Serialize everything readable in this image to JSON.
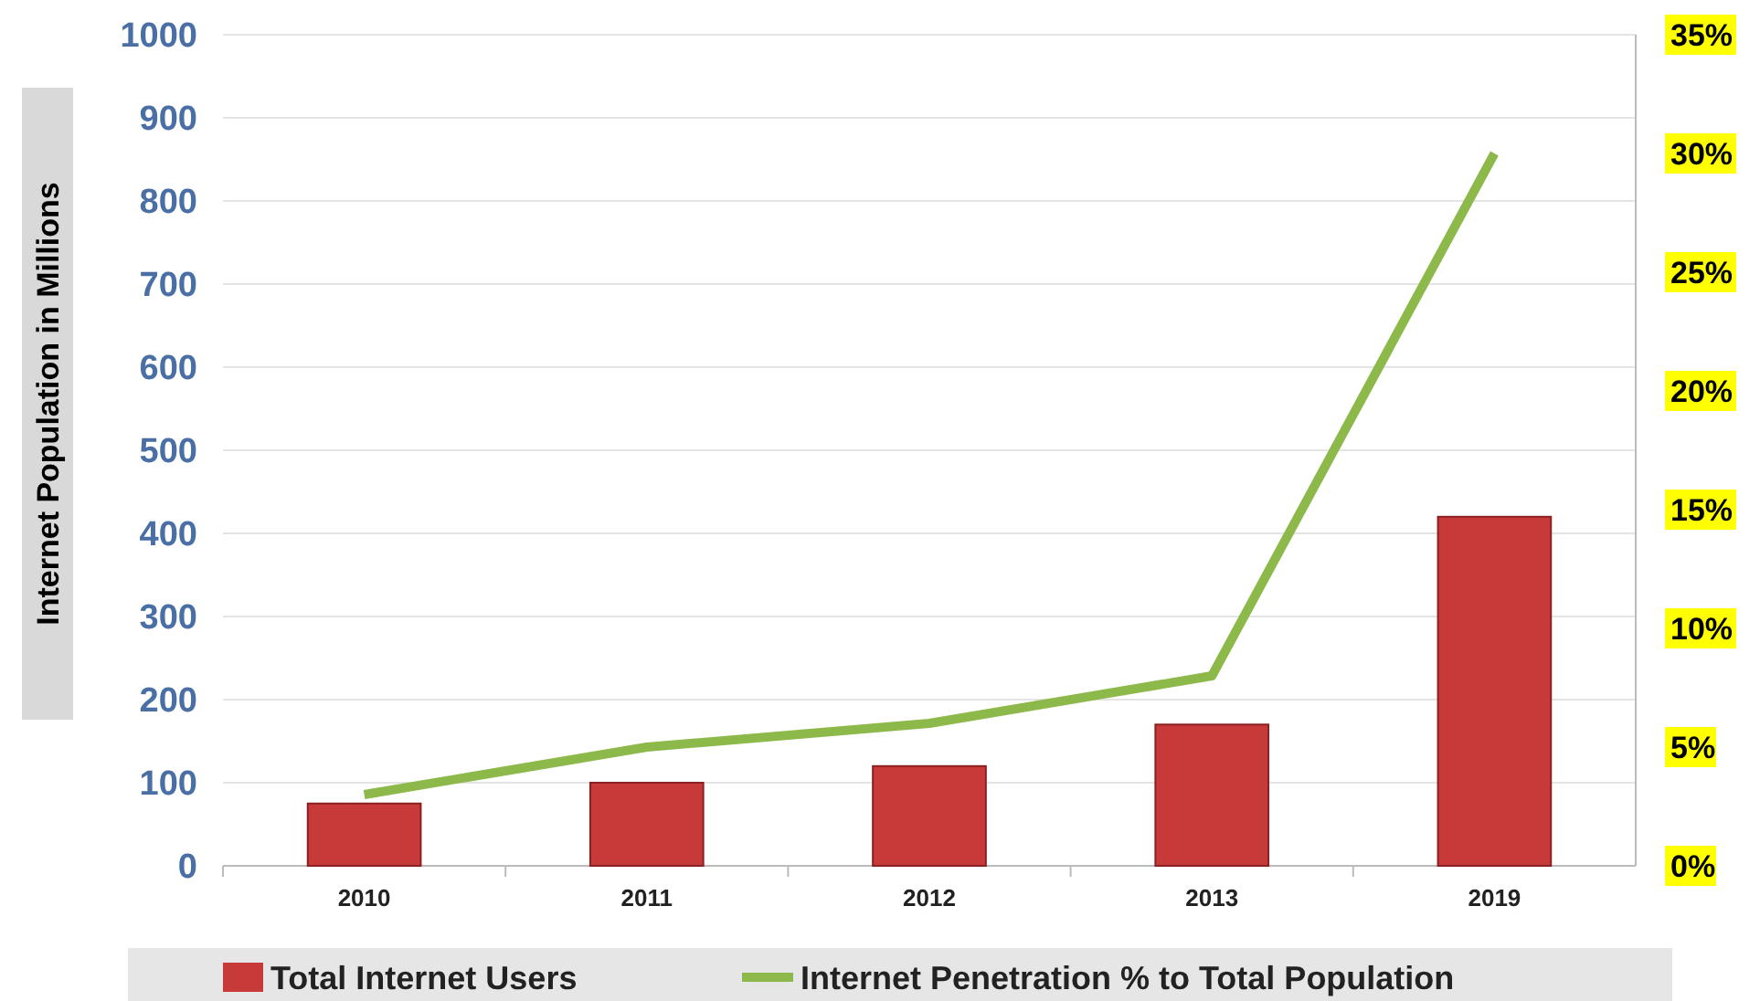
{
  "chart_data": {
    "type": "bar",
    "categories": [
      "2010",
      "2011",
      "2012",
      "2013",
      "2019"
    ],
    "ylabel": "Internet Population in Millions",
    "series": [
      {
        "name": "Total Internet Users",
        "color": "#c83a3a",
        "values": [
          75,
          100,
          120,
          170,
          420
        ]
      },
      {
        "name": "Internet Penetration % to Total Population",
        "type": "line",
        "axis": "y2",
        "color": "#8cb94a",
        "values": [
          3,
          5,
          6,
          8,
          30
        ]
      }
    ],
    "ylim": [
      0,
      1000
    ],
    "yticks": [
      0,
      100,
      200,
      300,
      400,
      500,
      600,
      700,
      800,
      900,
      1000
    ],
    "y2lim": [
      0,
      35
    ],
    "y2ticks": [
      {
        "value": 0,
        "label": "0%"
      },
      {
        "value": 5,
        "label": "5%"
      },
      {
        "value": 10,
        "label": "10%"
      },
      {
        "value": 15,
        "label": "15%"
      },
      {
        "value": 20,
        "label": "20%"
      },
      {
        "value": 25,
        "label": "25%"
      },
      {
        "value": 30,
        "label": "30%"
      },
      {
        "value": 35,
        "label": "35%"
      }
    ],
    "grid": "y",
    "legend": "bottom",
    "marker": "none",
    "line_style": "solid"
  }
}
